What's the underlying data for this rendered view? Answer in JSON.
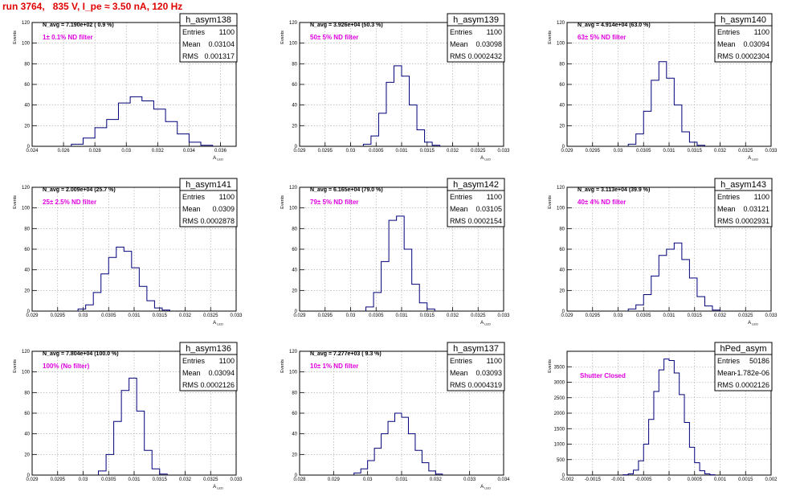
{
  "title": "run 3764,   835 V, I_pe ≈ 3.50 nA, 120 Hz",
  "ylabel": "Events",
  "stat_labels": {
    "entries": "Entries",
    "mean": "Mean",
    "rms": "RMS"
  },
  "colors": {
    "title": "#e00000",
    "hist": "#00007a",
    "note": "#e000e0",
    "grid": "#a0a0a0"
  },
  "chart_data": [
    {
      "type": "bar",
      "name": "h_asym138",
      "navg": "N_avg = 7.190e+02 ( 0.9 %)",
      "note": "1± 0.1% ND filter",
      "entries": "1100",
      "mean": "0.03104",
      "rms": "0.001317",
      "xlabel": "A",
      "xlabel_sub": "LED",
      "xlim": [
        0.024,
        0.037
      ],
      "ylim": [
        0,
        120
      ],
      "xticks": [
        "0.024",
        "0.026",
        "0.028",
        "0.03",
        "0.032",
        "0.034",
        "0.036"
      ],
      "yticks": [
        "0",
        "20",
        "40",
        "60",
        "80",
        "100",
        "120"
      ],
      "bin_edges": [
        0.0265,
        0.02725,
        0.028,
        0.02875,
        0.0295,
        0.03025,
        0.031,
        0.03175,
        0.0325,
        0.03325,
        0.034,
        0.03475,
        0.0355
      ],
      "counts": [
        2,
        8,
        18,
        26,
        42,
        48,
        44,
        36,
        24,
        12,
        4,
        1
      ]
    },
    {
      "type": "bar",
      "name": "h_asym139",
      "navg": "N_avg = 3.926e+04 (50.3 %)",
      "note": "50± 5% ND filter",
      "entries": "1100",
      "mean": "0.03098",
      "rms": "0.0002432",
      "xlabel": "A",
      "xlabel_sub": "LED",
      "xlim": [
        0.029,
        0.033
      ],
      "ylim": [
        0,
        120
      ],
      "xticks": [
        "0.029",
        "0.0295",
        "0.03",
        "0.0305",
        "0.031",
        "0.0315",
        "0.032",
        "0.0325",
        "0.033"
      ],
      "yticks": [
        "0",
        "20",
        "40",
        "60",
        "80",
        "100",
        "120"
      ],
      "bin_edges": [
        0.03025,
        0.0304,
        0.03055,
        0.0307,
        0.03085,
        0.031,
        0.03115,
        0.0313,
        0.03145,
        0.0316,
        0.03175
      ],
      "counts": [
        2,
        10,
        32,
        62,
        78,
        68,
        40,
        16,
        4,
        1
      ]
    },
    {
      "type": "bar",
      "name": "h_asym140",
      "navg": "N_avg = 4.914e+04 (63.0 %)",
      "note": "63± 5% ND filter",
      "entries": "1100",
      "mean": "0.03094",
      "rms": "0.0002304",
      "xlabel": "A",
      "xlabel_sub": "LED",
      "xlim": [
        0.029,
        0.033
      ],
      "ylim": [
        0,
        120
      ],
      "xticks": [
        "0.029",
        "0.0295",
        "0.03",
        "0.0305",
        "0.031",
        "0.0315",
        "0.032",
        "0.0325",
        "0.033"
      ],
      "yticks": [
        "0",
        "20",
        "40",
        "60",
        "80",
        "100",
        "120"
      ],
      "bin_edges": [
        0.0302,
        0.03035,
        0.0305,
        0.03065,
        0.0308,
        0.03095,
        0.0311,
        0.03125,
        0.0314,
        0.03155,
        0.0317
      ],
      "counts": [
        2,
        12,
        34,
        64,
        82,
        66,
        40,
        14,
        4,
        1
      ]
    },
    {
      "type": "bar",
      "name": "h_asym141",
      "navg": "N_avg = 2.009e+04 (25.7 %)",
      "note": "25± 2.5% ND filter",
      "entries": "1100",
      "mean": "0.0309",
      "rms": "0.0002878",
      "xlabel": "A",
      "xlabel_sub": "LED",
      "xlim": [
        0.029,
        0.033
      ],
      "ylim": [
        0,
        120
      ],
      "xticks": [
        "0.029",
        "0.0295",
        "0.03",
        "0.0305",
        "0.031",
        "0.0315",
        "0.032",
        "0.0325",
        "0.033"
      ],
      "yticks": [
        "0",
        "20",
        "40",
        "60",
        "80",
        "100",
        "120"
      ],
      "bin_edges": [
        0.0299,
        0.03005,
        0.0302,
        0.03035,
        0.0305,
        0.03065,
        0.0308,
        0.03095,
        0.0311,
        0.03125,
        0.0314,
        0.03155,
        0.0317
      ],
      "counts": [
        2,
        6,
        18,
        36,
        52,
        62,
        58,
        42,
        24,
        10,
        3,
        1
      ]
    },
    {
      "type": "bar",
      "name": "h_asym142",
      "navg": "N_avg = 6.165e+04 (79.0 %)",
      "note": "79± 5% ND filter",
      "entries": "1100",
      "mean": "0.03105",
      "rms": "0.0002154",
      "xlabel": "A",
      "xlabel_sub": "LED",
      "xlim": [
        0.029,
        0.033
      ],
      "ylim": [
        0,
        120
      ],
      "xticks": [
        "0.029",
        "0.0295",
        "0.03",
        "0.0305",
        "0.031",
        "0.0315",
        "0.032",
        "0.0325",
        "0.033"
      ],
      "yticks": [
        "0",
        "20",
        "40",
        "60",
        "80",
        "100",
        "120"
      ],
      "bin_edges": [
        0.0303,
        0.03045,
        0.0306,
        0.03075,
        0.0309,
        0.03105,
        0.0312,
        0.03135,
        0.0315,
        0.03165
      ],
      "counts": [
        4,
        18,
        48,
        88,
        92,
        60,
        26,
        8,
        2
      ]
    },
    {
      "type": "bar",
      "name": "h_asym143",
      "navg": "N_avg = 3.113e+04 (39.9 %)",
      "note": "40± 4% ND filter",
      "entries": "1100",
      "mean": "0.03121",
      "rms": "0.0002931",
      "xlabel": "A",
      "xlabel_sub": "LED",
      "xlim": [
        0.029,
        0.033
      ],
      "ylim": [
        0,
        120
      ],
      "xticks": [
        "0.029",
        "0.0295",
        "0.03",
        "0.0305",
        "0.031",
        "0.0315",
        "0.032",
        "0.0325",
        "0.033"
      ],
      "yticks": [
        "0",
        "20",
        "40",
        "60",
        "80",
        "100",
        "120"
      ],
      "bin_edges": [
        0.0302,
        0.03035,
        0.0305,
        0.03065,
        0.0308,
        0.03095,
        0.0311,
        0.03125,
        0.0314,
        0.03155,
        0.0317,
        0.03185,
        0.032
      ],
      "counts": [
        2,
        6,
        16,
        34,
        54,
        60,
        66,
        50,
        32,
        14,
        5,
        1
      ]
    },
    {
      "type": "bar",
      "name": "h_asym136",
      "navg": "N_avg = 7.804e+04 (100.0 %)",
      "note": "100% (No filter)",
      "entries": "1100",
      "mean": "0.03094",
      "rms": "0.0002126",
      "xlabel": "A",
      "xlabel_sub": "LED",
      "xlim": [
        0.029,
        0.033
      ],
      "ylim": [
        0,
        120
      ],
      "xticks": [
        "0.029",
        "0.0295",
        "0.03",
        "0.0305",
        "0.031",
        "0.0315",
        "0.032",
        "0.0325",
        "0.033"
      ],
      "yticks": [
        "0",
        "20",
        "40",
        "60",
        "80",
        "100",
        "120"
      ],
      "bin_edges": [
        0.0303,
        0.03045,
        0.0306,
        0.03075,
        0.0309,
        0.03105,
        0.0312,
        0.03135,
        0.0315,
        0.03165
      ],
      "counts": [
        4,
        20,
        52,
        82,
        94,
        62,
        24,
        6,
        1
      ]
    },
    {
      "type": "bar",
      "name": "h_asym137",
      "navg": "N_avg = 7.277e+03 ( 9.3 %)",
      "note": "10± 1% ND filter",
      "entries": "1100",
      "mean": "0.03093",
      "rms": "0.0004319",
      "xlabel": "A",
      "xlabel_sub": "LED",
      "xlim": [
        0.028,
        0.034
      ],
      "ylim": [
        0,
        120
      ],
      "xticks": [
        "0.028",
        "0.029",
        "0.03",
        "0.031",
        "0.032",
        "0.033",
        "0.034"
      ],
      "yticks": [
        "0",
        "20",
        "40",
        "60",
        "80",
        "100",
        "120"
      ],
      "bin_edges": [
        0.0296,
        0.0298,
        0.03,
        0.0302,
        0.0304,
        0.0306,
        0.0308,
        0.031,
        0.0312,
        0.0314,
        0.0316,
        0.0318,
        0.032,
        0.0322
      ],
      "counts": [
        2,
        6,
        14,
        26,
        40,
        52,
        60,
        56,
        40,
        24,
        12,
        4,
        1
      ]
    },
    {
      "type": "bar",
      "name": "hPed_asym",
      "navg": "",
      "note": "Shutter Closed",
      "entries": "50186",
      "mean": "-1.782e-06",
      "rms": "0.0002126",
      "xlabel": "",
      "xlabel_sub": "",
      "xlim": [
        -0.002,
        0.002
      ],
      "ylim": [
        0,
        4000
      ],
      "xticks": [
        "-0.002",
        "-0.0015",
        "-0.001",
        "-0.0005",
        "0",
        "0.0005",
        "0.001",
        "0.0015",
        "0.002"
      ],
      "yticks": [
        "0",
        "500",
        "1000",
        "1500",
        "2000",
        "2500",
        "3000",
        "3500"
      ],
      "bin_edges": [
        -0.0009,
        -0.0008,
        -0.0007,
        -0.0006,
        -0.0005,
        -0.0004,
        -0.0003,
        -0.0002,
        -0.0001,
        0,
        0.0001,
        0.0002,
        0.0003,
        0.0004,
        0.0005,
        0.0006,
        0.0007,
        0.0008,
        0.0009
      ],
      "counts": [
        10,
        40,
        160,
        460,
        1000,
        1800,
        2700,
        3400,
        3750,
        3700,
        3300,
        2600,
        1700,
        900,
        400,
        140,
        40,
        10
      ]
    }
  ]
}
